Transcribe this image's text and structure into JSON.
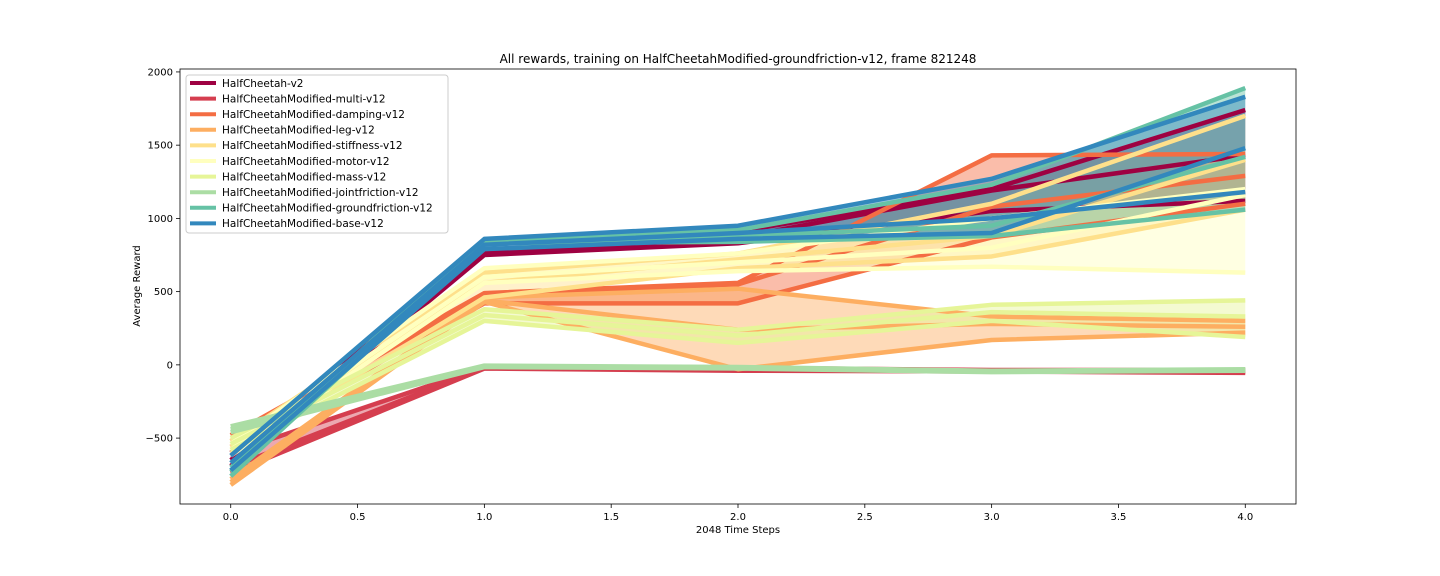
{
  "chart_data": {
    "type": "line",
    "title": "All rewards, training on HalfCheetahModified-groundfriction-v12, frame 821248",
    "xlabel": "2048 Time Steps",
    "ylabel": "Average Reward",
    "xlim": [
      -0.2,
      4.2
    ],
    "ylim": [
      -950,
      2020
    ],
    "xticks": [
      0.0,
      0.5,
      1.0,
      1.5,
      2.0,
      2.5,
      3.0,
      3.5,
      4.0
    ],
    "xtick_labels": [
      "0.0",
      "0.5",
      "1.0",
      "1.5",
      "2.0",
      "2.5",
      "3.0",
      "3.5",
      "4.0"
    ],
    "yticks": [
      -500,
      0,
      500,
      1000,
      1500,
      2000
    ],
    "ytick_labels": [
      "−500",
      "0",
      "500",
      "1000",
      "1500",
      "2000"
    ],
    "x": [
      0,
      1,
      2,
      3,
      4
    ],
    "legend_position": "upper-left",
    "grid": false,
    "series": [
      {
        "name": "HalfCheetah-v2",
        "color": "#9e0142",
        "mean": [
          -650,
          760,
          870,
          1190,
          1430
        ],
        "upper": [
          -600,
          770,
          910,
          1200,
          1740
        ],
        "lower": [
          -690,
          750,
          830,
          1050,
          1120
        ]
      },
      {
        "name": "HalfCheetahModified-multi-v12",
        "color": "#d53e4f",
        "mean": [
          -700,
          -20,
          -30,
          -40,
          -45
        ],
        "upper": [
          -600,
          -15,
          -20,
          -35,
          -35
        ],
        "lower": [
          -740,
          -25,
          -40,
          -45,
          -55
        ]
      },
      {
        "name": "HalfCheetahModified-damping-v12",
        "color": "#f46d43",
        "mean": [
          -520,
          480,
          550,
          1080,
          1290
        ],
        "upper": [
          -480,
          490,
          560,
          1430,
          1440
        ],
        "lower": [
          -560,
          420,
          420,
          870,
          1100
        ]
      },
      {
        "name": "HalfCheetahModified-leg-v12",
        "color": "#fdae61",
        "mean": [
          -800,
          440,
          240,
          280,
          260
        ],
        "upper": [
          -780,
          460,
          520,
          330,
          300
        ],
        "lower": [
          -820,
          430,
          -30,
          170,
          220
        ]
      },
      {
        "name": "HalfCheetahModified-stiffness-v12",
        "color": "#fee08b",
        "mean": [
          -560,
          560,
          720,
          880,
          1400
        ],
        "upper": [
          -520,
          630,
          760,
          1100,
          1700
        ],
        "lower": [
          -600,
          460,
          660,
          740,
          1060
        ]
      },
      {
        "name": "HalfCheetahModified-motor-v12",
        "color": "#ffffbf",
        "mean": [
          -580,
          600,
          700,
          800,
          1160
        ],
        "upper": [
          -540,
          660,
          760,
          1000,
          1200
        ],
        "lower": [
          -620,
          560,
          640,
          670,
          630
        ]
      },
      {
        "name": "HalfCheetahModified-mass-v12",
        "color": "#e6f598",
        "mean": [
          -540,
          340,
          200,
          360,
          330
        ],
        "upper": [
          -500,
          380,
          240,
          410,
          440
        ],
        "lower": [
          -580,
          300,
          150,
          300,
          190
        ]
      },
      {
        "name": "HalfCheetahModified-jointfriction-v12",
        "color": "#abdda4",
        "mean": [
          -440,
          -10,
          -20,
          -45,
          -35
        ],
        "upper": [
          -420,
          -5,
          -15,
          -40,
          -30
        ],
        "lower": [
          -460,
          -15,
          -25,
          -50,
          -40
        ]
      },
      {
        "name": "HalfCheetahModified-groundfriction-v12",
        "color": "#66c2a5",
        "mean": [
          -730,
          840,
          880,
          950,
          1420
        ],
        "upper": [
          -700,
          850,
          920,
          1230,
          1890
        ],
        "lower": [
          -760,
          830,
          840,
          880,
          1060
        ]
      },
      {
        "name": "HalfCheetahModified-base-v12",
        "color": "#3288bd",
        "mean": [
          -670,
          820,
          900,
          1000,
          1180
        ],
        "upper": [
          -620,
          860,
          950,
          1270,
          1830
        ],
        "lower": [
          -720,
          790,
          860,
          900,
          1480
        ]
      }
    ]
  }
}
